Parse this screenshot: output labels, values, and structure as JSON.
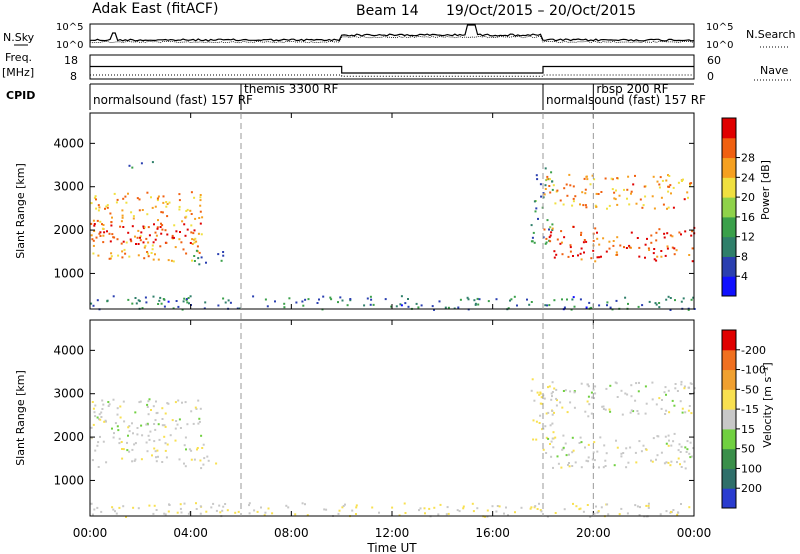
{
  "header": {
    "title": "Adak East (fitACF)",
    "beam": "Beam 14",
    "dates": "19/Oct/2015 – 20/Oct/2015"
  },
  "labels": {
    "nsky": "N.Sky",
    "nsearch": "N.Search",
    "freq_line1": "Freq.",
    "freq_line2": "[MHz]",
    "nave": "Nave",
    "cpid": "CPID",
    "xlabel": "Time UT",
    "ylabel": "Slant Range [km]",
    "power_label": "Power [dB]",
    "velocity_label": "Velocity [m s⁻¹]"
  },
  "noise_panel": {
    "left_ticks": [
      "10^5",
      "10^0"
    ],
    "right_ticks": [
      "10^5",
      "10^0"
    ]
  },
  "freq_panel": {
    "left_ticks": [
      "18",
      "8"
    ],
    "right_ticks": [
      "60",
      "0"
    ],
    "freq_series": [
      {
        "t": 0,
        "mhz": 13.2
      },
      {
        "t": 10,
        "mhz": 13.2
      },
      {
        "t": 10,
        "mhz": 10.5
      },
      {
        "t": 18,
        "mhz": 10.5
      },
      {
        "t": 18,
        "mhz": 13.2
      },
      {
        "t": 24,
        "mhz": 13.2
      }
    ],
    "nave_series": [
      {
        "t": 0,
        "nave": 10
      },
      {
        "t": 10,
        "nave": 10
      },
      {
        "t": 10,
        "nave": 7
      },
      {
        "t": 18,
        "nave": 7
      },
      {
        "t": 18,
        "nave": 10
      },
      {
        "t": 24,
        "nave": 10
      }
    ]
  },
  "cpid_segments": [
    {
      "start": 0,
      "end": 6,
      "label": "normalsound (fast) 157 RF"
    },
    {
      "start": 6,
      "end": 18,
      "label": "themis 3300 RF"
    },
    {
      "start": 18,
      "end": 20,
      "label": "normalsound (fast) 157 RF"
    },
    {
      "start": 20,
      "end": 24,
      "label": "rbsp 200 RF"
    }
  ],
  "x_axis": {
    "ticks": [
      "00:00",
      "04:00",
      "08:00",
      "12:00",
      "16:00",
      "20:00",
      "00:00"
    ]
  },
  "y_axis": {
    "ticks": [
      "1000",
      "2000",
      "3000",
      "4000"
    ]
  },
  "colorbars": {
    "power": {
      "ticks": [
        "4",
        "8",
        "12",
        "16",
        "20",
        "24",
        "28"
      ],
      "colors": [
        "#1010ff",
        "#2a3fb0",
        "#2f7f6a",
        "#3aa04a",
        "#8fd24a",
        "#f0e040",
        "#f5a020",
        "#f06010",
        "#e00000"
      ]
    },
    "velocity": {
      "ticks": [
        "200",
        "100",
        "50",
        "15",
        "-15",
        "-50",
        "-100",
        "-200"
      ],
      "colors": [
        "#2a3ccf",
        "#2f6f6a",
        "#3a8f4a",
        "#70d040",
        "#c8c8c8",
        "#f8e050",
        "#f0a030",
        "#f07020",
        "#e00000"
      ]
    }
  },
  "chart_data": [
    {
      "type": "heatmap",
      "title": "Power [dB]",
      "xlabel": "Time UT",
      "ylabel": "Slant Range [km]",
      "xlim": [
        0,
        24
      ],
      "ylim": [
        180,
        4700
      ],
      "colorbar_range": [
        0,
        30
      ],
      "regions": [
        {
          "t0": 0.0,
          "t1": 4.5,
          "r0": 1300,
          "r1": 2900,
          "value": 22
        },
        {
          "t0": 0.0,
          "t1": 4.5,
          "r0": 1700,
          "r1": 2200,
          "value": 28
        },
        {
          "t0": 4.0,
          "t1": 5.3,
          "r0": 1200,
          "r1": 1600,
          "value": 7
        },
        {
          "t0": 1.5,
          "t1": 2.5,
          "r0": 3400,
          "r1": 3600,
          "value": 6
        },
        {
          "t0": 17.5,
          "t1": 18.4,
          "r0": 1700,
          "r1": 3500,
          "value": 10
        },
        {
          "t0": 18.0,
          "t1": 24.0,
          "r0": 1300,
          "r1": 2100,
          "value": 26
        },
        {
          "t0": 18.0,
          "t1": 24.0,
          "r0": 2500,
          "r1": 3300,
          "value": 22
        },
        {
          "t0": 0.0,
          "t1": 24.0,
          "r0": 180,
          "r1": 500,
          "value": 8
        }
      ]
    },
    {
      "type": "heatmap",
      "title": "Velocity [m s⁻¹]",
      "xlabel": "Time UT",
      "ylabel": "Slant Range [km]",
      "xlim": [
        0,
        24
      ],
      "ylim": [
        180,
        4700
      ],
      "colorbar_range": [
        -200,
        200
      ],
      "regions": [
        {
          "t0": 0.0,
          "t1": 4.5,
          "r0": 1300,
          "r1": 2900,
          "value": 0
        },
        {
          "t0": 4.0,
          "t1": 5.3,
          "r0": 1400,
          "r1": 1600,
          "value": 40
        },
        {
          "t0": 17.5,
          "t1": 18.4,
          "r0": 1700,
          "r1": 3400,
          "value": 35
        },
        {
          "t0": 18.0,
          "t1": 24.0,
          "r0": 1300,
          "r1": 2100,
          "value": 0
        },
        {
          "t0": 18.0,
          "t1": 24.0,
          "r0": 2500,
          "r1": 3300,
          "value": 0
        },
        {
          "t0": 0.0,
          "t1": 24.0,
          "r0": 180,
          "r1": 500,
          "value": 20
        }
      ]
    }
  ]
}
